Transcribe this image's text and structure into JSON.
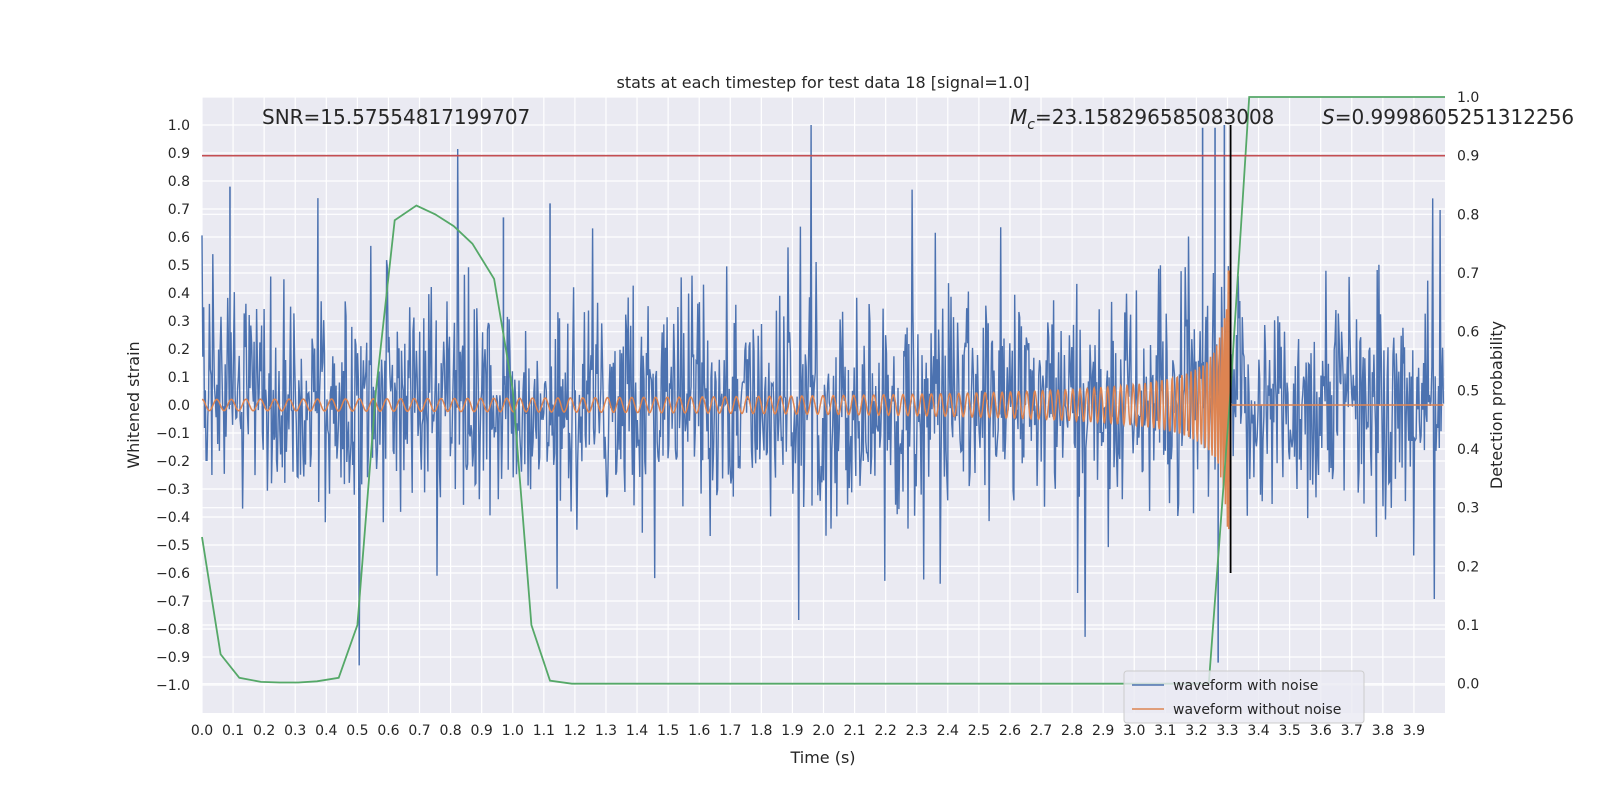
{
  "chart_data": {
    "type": "line",
    "title": "stats at each timestep for test data 18 [signal=1.0]",
    "xlabel": "Time (s)",
    "ylabel": "Whitened strain",
    "ylabel_right": "Detection probability",
    "xlim": [
      0.0,
      4.0
    ],
    "ylim": [
      -1.1,
      1.1
    ],
    "ylim_right": [
      -0.05,
      1.0
    ],
    "x_ticks": [
      "0.0",
      "0.1",
      "0.2",
      "0.3",
      "0.4",
      "0.5",
      "0.6",
      "0.7",
      "0.8",
      "0.9",
      "1.0",
      "1.1",
      "1.2",
      "1.3",
      "1.4",
      "1.5",
      "1.6",
      "1.7",
      "1.8",
      "1.9",
      "2.0",
      "2.1",
      "2.2",
      "2.3",
      "2.4",
      "2.5",
      "2.6",
      "2.7",
      "2.8",
      "2.9",
      "3.0",
      "3.1",
      "3.2",
      "3.3",
      "3.4",
      "3.5",
      "3.6",
      "3.7",
      "3.8",
      "3.9"
    ],
    "y_ticks": [
      "1.0",
      "0.9",
      "0.8",
      "0.7",
      "0.6",
      "0.5",
      "0.4",
      "0.3",
      "0.2",
      "0.1",
      "0.0",
      "−0.1",
      "−0.2",
      "−0.3",
      "−0.4",
      "−0.5",
      "−0.6",
      "−0.7",
      "−0.8",
      "−0.9",
      "−1.0"
    ],
    "y_ticks_right": [
      "1.0",
      "0.9",
      "0.8",
      "0.7",
      "0.6",
      "0.5",
      "0.4",
      "0.3",
      "0.2",
      "0.1",
      "0.0"
    ],
    "grid": true,
    "legend_position": "lower-right",
    "annotations": {
      "snr": "SNR=15.57554817199707",
      "mc_symbol": "M",
      "mc_subscript": "c",
      "mc_value": "=23.158296585083008",
      "s_symbol": "S",
      "s_value": "=0.9998605251312256"
    },
    "threshold_right": 0.9,
    "merger_time": 3.31,
    "series": [
      {
        "name": "waveform with noise",
        "color": "#4c72b0",
        "description_points": "noisy whitened strain, amplitude mostly within ±0.5 with spikes to ~±0.8",
        "peak_points": [
          [
            0.09,
            0.78
          ],
          [
            1.12,
            0.72
          ],
          [
            0.97,
            0.67
          ],
          [
            3.22,
            0.99
          ],
          [
            3.26,
            0.99
          ],
          [
            3.29,
            1.0
          ],
          [
            3.27,
            -0.92
          ]
        ]
      },
      {
        "name": "waveform without noise",
        "color": "#dd8452",
        "x_start": 0.0,
        "x_end": 3.31,
        "amplitude_start": 0.02,
        "amplitude_peak": 0.62,
        "after_merger_value": 0.0
      },
      {
        "name": "Detection probability",
        "color": "#55a868",
        "axis": "right",
        "x": [
          0.0,
          0.06,
          0.12,
          0.19,
          0.25,
          0.31,
          0.37,
          0.44,
          0.5,
          0.56,
          0.62,
          0.69,
          0.75,
          0.81,
          0.87,
          0.94,
          1.0,
          1.06,
          1.12,
          1.19,
          1.25,
          1.31,
          3.24,
          3.31,
          3.37,
          3.43,
          3.5,
          4.0
        ],
        "y": [
          0.25,
          0.05,
          0.01,
          0.003,
          0.002,
          0.002,
          0.004,
          0.01,
          0.1,
          0.5,
          0.79,
          0.815,
          0.8,
          0.78,
          0.75,
          0.69,
          0.5,
          0.1,
          0.005,
          0.0,
          0.0,
          0.0,
          0.0,
          0.5,
          1.0,
          1.0,
          1.0,
          1.0
        ]
      }
    ]
  }
}
